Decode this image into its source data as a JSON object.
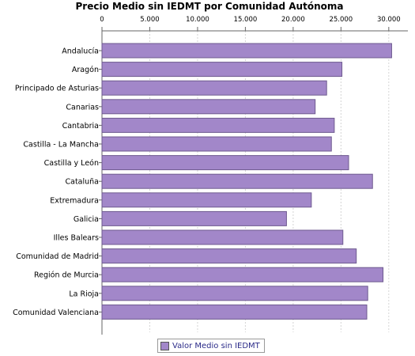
{
  "chart_data": {
    "type": "bar",
    "orientation": "horizontal",
    "title": "Precio Medio sin IEDMT por Comunidad Autónoma",
    "xlabel": "",
    "ylabel": "",
    "xlim": [
      0,
      32000
    ],
    "x_ticks": [
      0,
      5000,
      10000,
      15000,
      20000,
      25000,
      30000
    ],
    "x_tick_labels": [
      "0",
      "5.000",
      "10.000",
      "15.000",
      "20.000",
      "25.000",
      "30.000"
    ],
    "x_axis_position": "top",
    "grid": true,
    "legend_position": "bottom-center",
    "categories": [
      "Andalucía",
      "Aragón",
      "Principado de Asturias",
      "Canarias",
      "Cantabria",
      "Castilla - La Mancha",
      "Castilla y León",
      "Cataluña",
      "Extremadura",
      "Galicia",
      "Illes Balears",
      "Comunidad de Madrid",
      "Región de Murcia",
      "La Rioja",
      "Comunidad Valenciana"
    ],
    "series": [
      {
        "name": "Valor Medio sin IEDMT",
        "color": "#a287c9",
        "values": [
          30300,
          25100,
          23500,
          22300,
          24300,
          24000,
          25800,
          28300,
          21900,
          19300,
          25200,
          26600,
          29400,
          27800,
          27700
        ]
      }
    ]
  }
}
